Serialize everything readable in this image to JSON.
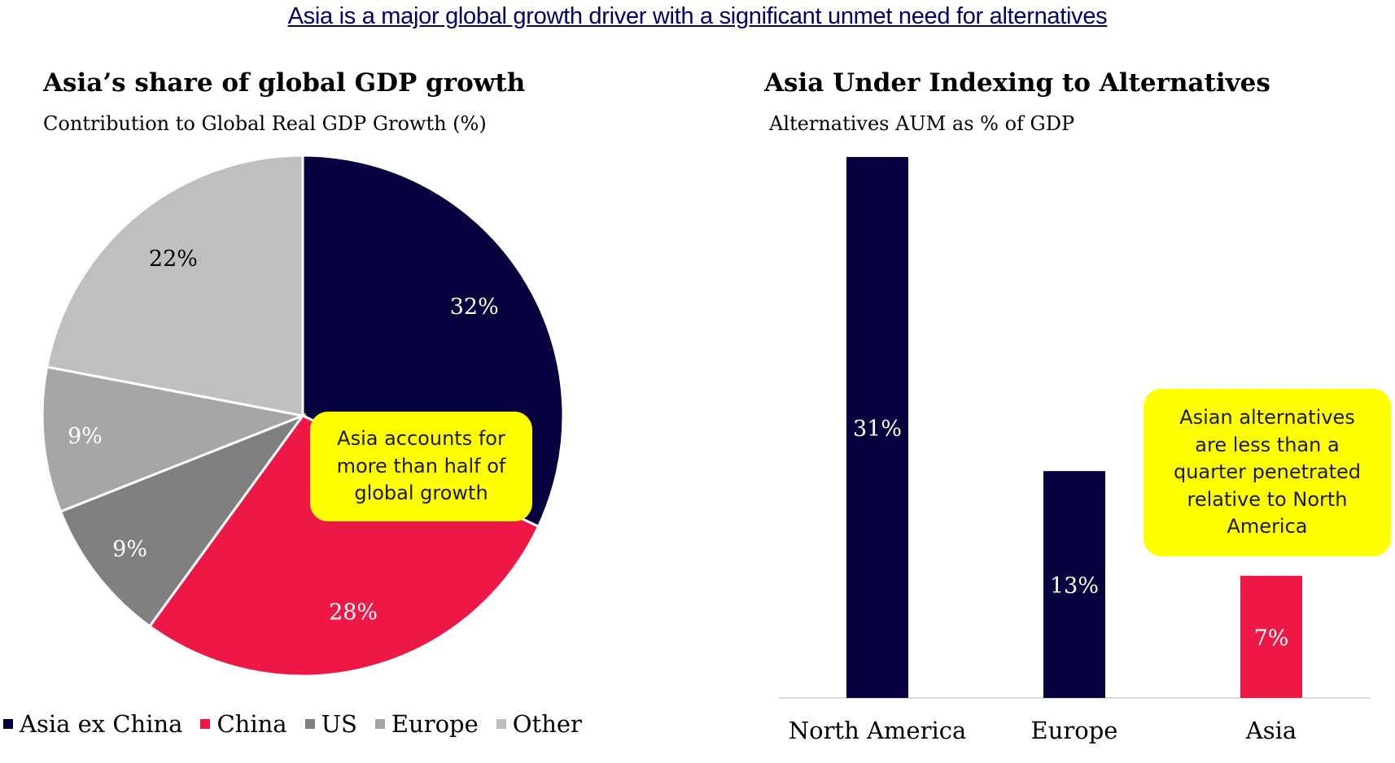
{
  "headline": "Asia is a major global growth driver with a significant unmet need for alternatives",
  "chart_data": [
    {
      "type": "pie",
      "title": "Asia’s share of global GDP growth",
      "subtitle": "Contribution to Global Real GDP Growth (%)",
      "legend_position": "bottom",
      "slices": [
        {
          "name": "Asia ex China",
          "value": 32,
          "label": "32%",
          "color": "#07003f"
        },
        {
          "name": "China",
          "value": 28,
          "label": "28%",
          "color": "#ee1846"
        },
        {
          "name": "US",
          "value": 9,
          "label": "9%",
          "color": "#808080"
        },
        {
          "name": "Europe",
          "value": 9,
          "label": "9%",
          "color": "#a6a6a6"
        },
        {
          "name": "Other",
          "value": 22,
          "label": "22%",
          "color": "#bfbfbf"
        }
      ],
      "callout": "Asia accounts for more than half of global growth"
    },
    {
      "type": "bar",
      "title": "Asia Under Indexing to Alternatives",
      "subtitle": "Alternatives AUM as % of GDP",
      "categories": [
        "North America",
        "Europe",
        "Asia"
      ],
      "values": [
        31,
        13,
        7
      ],
      "labels": [
        "31%",
        "13%",
        "7%"
      ],
      "colors": [
        "#07003f",
        "#07003f",
        "#ee1846"
      ],
      "ylim": [
        0,
        31
      ],
      "grid": false,
      "callout": "Asian alternatives are less than a quarter penetrated relative to North America"
    }
  ]
}
